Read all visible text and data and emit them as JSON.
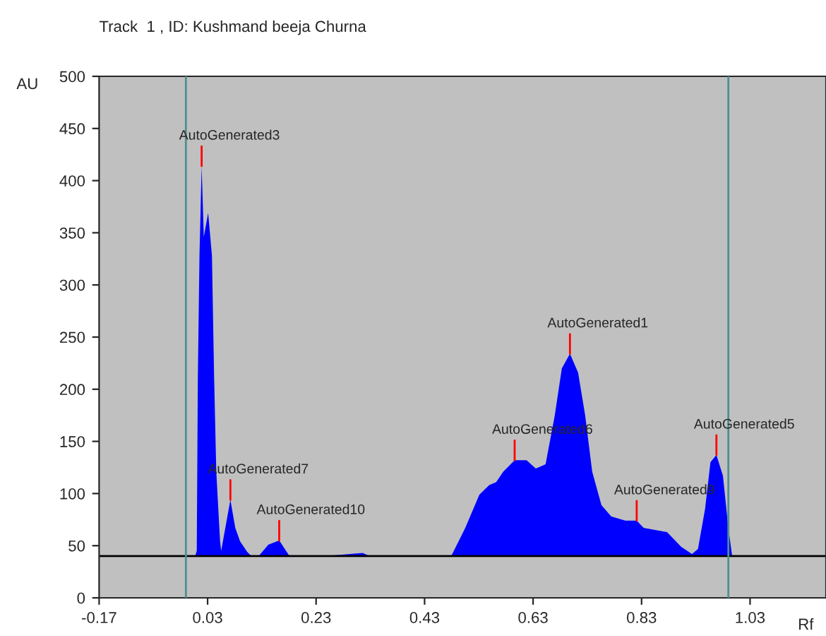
{
  "chart_data": {
    "type": "area",
    "title": "Track  1 , ID: Kushmand beeja Churna",
    "xlabel": "Rf",
    "ylabel": "AU",
    "x": [
      -0.006,
      0.007,
      0.01,
      0.012,
      0.015,
      0.019,
      0.023,
      0.031,
      0.038,
      0.042,
      0.046,
      0.053,
      0.055,
      0.064,
      0.072,
      0.081,
      0.09,
      0.103,
      0.111,
      0.124,
      0.142,
      0.162,
      0.181,
      0.246,
      0.316,
      0.329,
      0.474,
      0.479,
      0.505,
      0.531,
      0.549,
      0.562,
      0.575,
      0.596,
      0.618,
      0.635,
      0.653,
      0.67,
      0.683,
      0.698,
      0.713,
      0.726,
      0.739,
      0.756,
      0.774,
      0.8,
      0.821,
      0.834,
      0.877,
      0.903,
      0.923,
      0.934,
      0.947,
      0.957,
      0.968,
      0.98,
      0.99,
      0.997,
      1.077
    ],
    "series": [
      {
        "color": "#0000ff",
        "values": [
          40,
          40,
          45,
          211,
          328,
          414,
          346,
          369,
          328,
          211,
          121,
          54,
          45,
          71,
          94,
          67,
          54,
          44,
          40,
          40,
          51,
          55,
          40,
          40,
          43,
          40,
          40,
          40,
          67,
          99,
          108,
          111,
          121,
          132,
          132,
          124,
          128,
          175,
          220,
          234,
          216,
          175,
          121,
          89,
          78,
          74,
          74,
          67,
          63,
          49,
          42,
          47,
          85,
          130,
          137,
          117,
          67,
          40,
          40
        ]
      }
    ],
    "xlim": [
      -0.17,
      1.17
    ],
    "ylim": [
      0,
      500
    ],
    "xticks": [
      -0.17,
      0.03,
      0.23,
      0.43,
      0.63,
      0.83,
      1.03
    ],
    "yticks": [
      0,
      50,
      100,
      150,
      200,
      250,
      300,
      350,
      400,
      450,
      500
    ],
    "ref_lines": [
      {
        "axis": "y",
        "value": 40,
        "color": "#000000"
      },
      {
        "axis": "x",
        "value": -0.01,
        "color": "#4f8f8f"
      },
      {
        "axis": "x",
        "value": 0.99,
        "color": "#4f8f8f"
      }
    ],
    "annotations": [
      {
        "text": "AutoGenerated3",
        "x": 0.019,
        "y": 414
      },
      {
        "text": "AutoGenerated7",
        "x": 0.072,
        "y": 94
      },
      {
        "text": "AutoGenerated10",
        "x": 0.162,
        "y": 55
      },
      {
        "text": "AutoGenerated6",
        "x": 0.596,
        "y": 132
      },
      {
        "text": "AutoGenerated1",
        "x": 0.698,
        "y": 234
      },
      {
        "text": "AutoGenerated9",
        "x": 0.821,
        "y": 74
      },
      {
        "text": "AutoGenerated5",
        "x": 0.968,
        "y": 137
      }
    ],
    "grid": false
  }
}
